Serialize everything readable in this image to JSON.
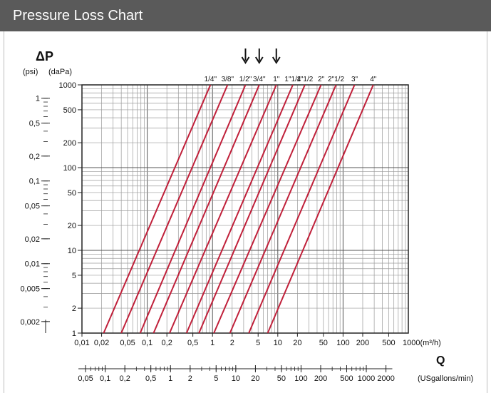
{
  "header": {
    "title": "Pressure Loss Chart"
  },
  "chart_data": {
    "type": "line",
    "title": "",
    "y_symbol": "ΔP",
    "y_units_left": "(psi)",
    "y_units_right": "(daPa)",
    "x_symbol": "Q",
    "x_unit_label": "1000(m³/h)",
    "x2_unit_label": "(USgallons/min)",
    "scale": "log-log",
    "xlim": [
      0.01,
      1000
    ],
    "ylim": [
      1,
      1000
    ],
    "daPa_ticks": [
      "1000",
      "500",
      "200",
      "100",
      "50",
      "20",
      "10",
      "5",
      "2",
      "1"
    ],
    "psi_ticks": [
      "1",
      "0,5",
      "0,2",
      "0,1",
      "0,05",
      "0,02",
      "0,01",
      "0,005",
      "0,002"
    ],
    "x_ticks": [
      "0,01",
      "0,02",
      "0,05",
      "0,1",
      "0,2",
      "0,5",
      "1",
      "2",
      "5",
      "10",
      "20",
      "50",
      "100",
      "200",
      "500"
    ],
    "x2_ticks": [
      "0,05",
      "0,1",
      "0,2",
      "0,5",
      "1",
      "2",
      "5",
      "10",
      "20",
      "50",
      "100",
      "200",
      "500",
      "1000",
      "2000"
    ],
    "series": [
      {
        "name": "1/4\"",
        "x": [
          0.0215,
          0.93
        ],
        "y": [
          1,
          1000
        ]
      },
      {
        "name": "3/8\"",
        "x": [
          0.04,
          1.7
        ],
        "y": [
          1,
          1000
        ]
      },
      {
        "name": "1/2\"",
        "x": [
          0.078,
          3.2
        ],
        "y": [
          1,
          1000
        ]
      },
      {
        "name": "3/4\"",
        "x": [
          0.125,
          5.2
        ],
        "y": [
          1,
          1000
        ]
      },
      {
        "name": "1\"",
        "x": [
          0.22,
          9.5
        ],
        "y": [
          1,
          1000
        ]
      },
      {
        "name": "1\"1/4",
        "x": [
          0.4,
          17
        ],
        "y": [
          1,
          1000
        ]
      },
      {
        "name": "1\"1/2",
        "x": [
          0.62,
          26
        ],
        "y": [
          1,
          1000
        ]
      },
      {
        "name": "2\"",
        "x": [
          1.05,
          46
        ],
        "y": [
          1,
          1000
        ]
      },
      {
        "name": "2\"1/2",
        "x": [
          1.85,
          78
        ],
        "y": [
          1,
          1000
        ]
      },
      {
        "name": "3\"",
        "x": [
          3.6,
          150
        ],
        "y": [
          1,
          1000
        ]
      },
      {
        "name": "4\"",
        "x": [
          7.0,
          290
        ],
        "y": [
          1,
          1000
        ]
      }
    ],
    "line_color": "#c0203a",
    "grid": true
  }
}
